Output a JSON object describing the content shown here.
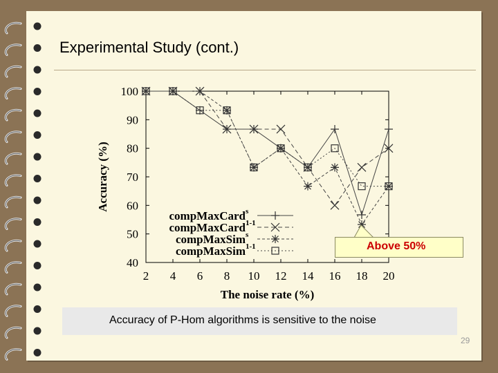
{
  "slide": {
    "title": "Experimental Study (cont.)",
    "caption": "Accuracy of P-Hom algorithms is sensitive to the noise",
    "callout": "Above 50%",
    "page_number": "29"
  },
  "chart_data": {
    "type": "line",
    "xlabel": "The noise rate (%)",
    "ylabel": "Accuracy (%)",
    "x": [
      2,
      4,
      6,
      8,
      10,
      12,
      14,
      16,
      18,
      20
    ],
    "xlim": [
      2,
      20
    ],
    "ylim": [
      40,
      100
    ],
    "yticks": [
      40,
      50,
      60,
      70,
      80,
      90,
      100
    ],
    "grid": false,
    "legend_position": "bottom-left",
    "series": [
      {
        "name": "compMaxCard",
        "superscript": "s",
        "marker": "plus",
        "dash": "solid",
        "values": [
          100,
          100,
          93.3,
          86.7,
          86.7,
          80,
          73.3,
          86.7,
          56.7,
          86.7
        ]
      },
      {
        "name": "compMaxCard",
        "superscript": "1-1",
        "marker": "x",
        "dash": "dashed",
        "values": [
          100,
          100,
          100,
          86.7,
          86.7,
          86.7,
          73.3,
          60,
          73.3,
          80
        ]
      },
      {
        "name": "compMaxSim",
        "superscript": "s",
        "marker": "asterisk",
        "dash": "shortdash",
        "values": [
          100,
          100,
          100,
          93.3,
          73.3,
          80,
          66.7,
          73.3,
          53.3,
          66.7
        ]
      },
      {
        "name": "compMaxSim",
        "superscript": "1-1",
        "marker": "square",
        "dash": "dotted",
        "values": [
          100,
          100,
          93.3,
          93.3,
          73.3,
          80,
          73.3,
          80,
          66.7,
          66.7
        ]
      }
    ]
  }
}
